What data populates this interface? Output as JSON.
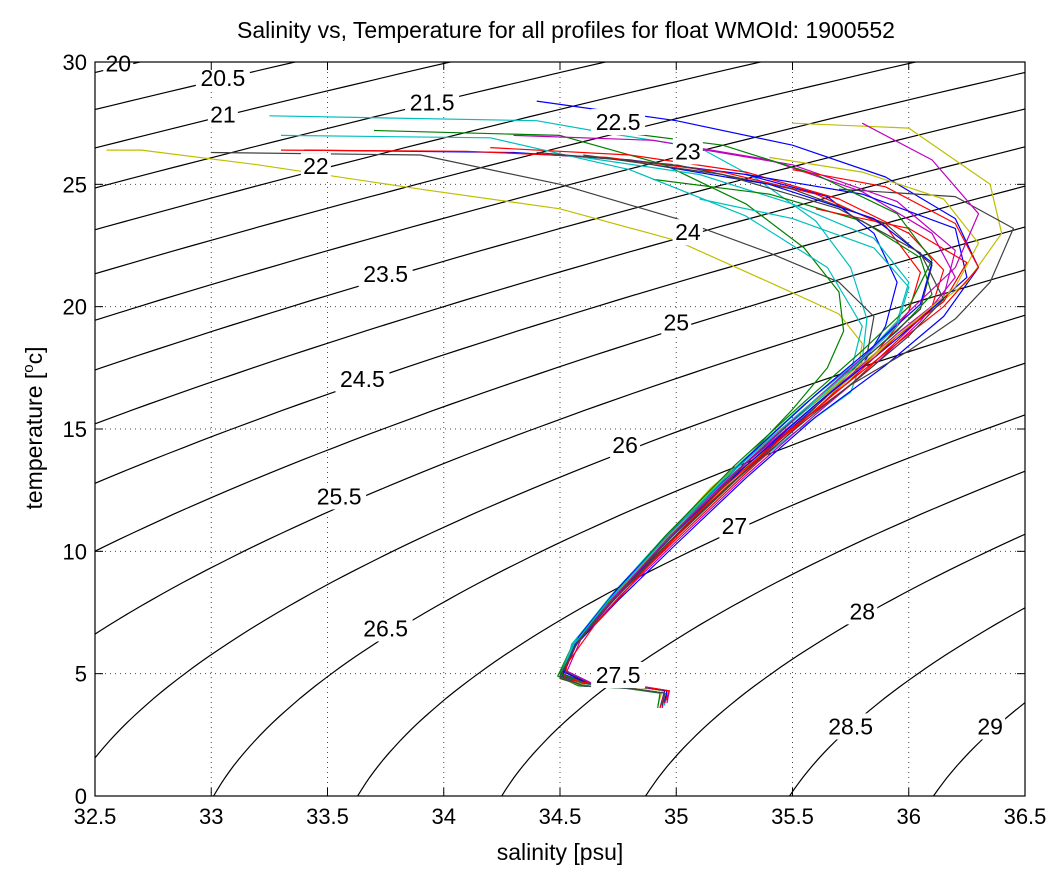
{
  "chart_data": {
    "type": "line",
    "title": "Salinity vs, Temperature for all profiles for float WMOId: 1900552",
    "xlabel": "salinity [psu]",
    "ylabel_main": "temperature [",
    "ylabel_sup": "o",
    "ylabel_end": "c]",
    "xlim": [
      32.5,
      36.5
    ],
    "ylim": [
      0,
      30
    ],
    "xticks": [
      "32.5",
      "33",
      "33.5",
      "34",
      "34.5",
      "35",
      "35.5",
      "36",
      "36.5"
    ],
    "yticks": [
      "0",
      "5",
      "10",
      "15",
      "20",
      "25",
      "30"
    ],
    "grid": true,
    "density_contours": [
      {
        "sigma": 20,
        "label": "20",
        "label_at": [
          32.6,
          29.7
        ]
      },
      {
        "sigma": 20.5,
        "label": "20.5",
        "label_at": [
          33.05,
          29.1
        ]
      },
      {
        "sigma": 21,
        "label": "21",
        "label_at": [
          33.05,
          27.6
        ]
      },
      {
        "sigma": 21.5,
        "label": "21.5",
        "label_at": [
          33.95,
          28.1
        ]
      },
      {
        "sigma": 22,
        "label": "22",
        "label_at": [
          33.45,
          25.5
        ]
      },
      {
        "sigma": 22.5,
        "label": "22.5",
        "label_at": [
          34.75,
          27.3
        ]
      },
      {
        "sigma": 23,
        "label": "23",
        "label_at": [
          35.05,
          26.1
        ]
      },
      {
        "sigma": 23.5,
        "label": "23.5",
        "label_at": [
          33.75,
          21.1
        ]
      },
      {
        "sigma": 24,
        "label": "24",
        "label_at": [
          35.05,
          22.8
        ]
      },
      {
        "sigma": 24.5,
        "label": "24.5",
        "label_at": [
          33.65,
          16.8
        ]
      },
      {
        "sigma": 25,
        "label": "25",
        "label_at": [
          35.0,
          19.1
        ]
      },
      {
        "sigma": 25.5,
        "label": "25.5",
        "label_at": [
          33.55,
          12.0
        ]
      },
      {
        "sigma": 26,
        "label": "26",
        "label_at": [
          34.78,
          14.1
        ]
      },
      {
        "sigma": 26.5,
        "label": "26.5",
        "label_at": [
          33.75,
          6.6
        ]
      },
      {
        "sigma": 27,
        "label": "27",
        "label_at": [
          35.25,
          10.8
        ]
      },
      {
        "sigma": 27.5,
        "label": "27.5",
        "label_at": [
          34.75,
          4.7
        ]
      },
      {
        "sigma": 28,
        "label": "28",
        "label_at": [
          35.8,
          7.3
        ]
      },
      {
        "sigma": 28.5,
        "label": "28.5",
        "label_at": [
          35.75,
          2.6
        ]
      },
      {
        "sigma": 29,
        "label": "29",
        "label_at": [
          36.35,
          2.6
        ]
      }
    ],
    "line_colors": [
      "#0000ff",
      "#008000",
      "#ff0000",
      "#00bfbf",
      "#bf00bf",
      "#bfbf00",
      "#404040"
    ],
    "series": [
      {
        "color": "#00bfbf",
        "x": [
          33.25,
          34.4,
          34.7,
          35.1,
          35.35,
          35.6,
          35.75,
          35.82,
          35.8,
          35.75,
          35.5,
          35.2,
          34.9,
          34.7,
          34.55,
          34.52,
          34.6,
          34.8,
          34.95,
          34.95
        ],
        "y": [
          27.8,
          27.6,
          27.1,
          26.5,
          25.2,
          23.5,
          21.6,
          19.5,
          17.8,
          16.5,
          14.8,
          12.5,
          9.9,
          7.9,
          6.2,
          4.9,
          4.5,
          4.4,
          4.2,
          3.7
        ]
      },
      {
        "color": "#0000ff",
        "x": [
          33.4,
          34.3,
          34.8,
          35.3,
          35.65,
          35.85,
          35.95,
          35.9,
          35.8,
          35.55,
          35.25,
          34.95,
          34.72,
          34.56,
          34.5,
          34.6,
          34.8,
          34.95,
          34.93
        ],
        "y": [
          26.4,
          26.3,
          26.0,
          25.4,
          24.5,
          23.0,
          21.0,
          19.2,
          17.6,
          15.5,
          13.0,
          10.2,
          8.0,
          6.3,
          5.0,
          4.6,
          4.5,
          4.3,
          3.6
        ]
      },
      {
        "color": "#ff0000",
        "x": [
          33.3,
          34.1,
          34.7,
          35.2,
          35.6,
          35.9,
          36.05,
          36.0,
          35.85,
          35.6,
          35.3,
          35.0,
          34.75,
          34.58,
          34.52,
          34.62,
          34.82,
          34.96,
          34.95
        ],
        "y": [
          26.4,
          26.35,
          26.1,
          25.5,
          24.6,
          23.3,
          21.4,
          19.8,
          18.0,
          15.8,
          13.2,
          10.5,
          8.2,
          6.4,
          5.1,
          4.6,
          4.5,
          4.3,
          3.8
        ]
      },
      {
        "color": "#bfbf00",
        "x": [
          32.55,
          32.7,
          33.2,
          33.9,
          34.5,
          35.0,
          35.4,
          35.7,
          35.8,
          35.78,
          35.55,
          35.25,
          34.97,
          34.74,
          34.57,
          34.51,
          34.6,
          34.8,
          34.94,
          34.92
        ],
        "y": [
          26.4,
          26.4,
          25.8,
          24.8,
          24.0,
          22.7,
          21.0,
          19.7,
          18.5,
          17.3,
          15.6,
          13.0,
          10.4,
          8.1,
          6.3,
          5.0,
          4.6,
          4.5,
          4.3,
          3.7
        ]
      },
      {
        "color": "#404040",
        "x": [
          33.0,
          33.9,
          34.5,
          35.0,
          35.4,
          35.7,
          35.85,
          35.82,
          35.6,
          35.3,
          35.0,
          34.76,
          34.58,
          34.52,
          34.63,
          34.83,
          34.97,
          34.96
        ],
        "y": [
          26.3,
          26.2,
          25.0,
          23.6,
          22.2,
          21.0,
          19.6,
          18.0,
          15.9,
          13.3,
          10.6,
          8.3,
          6.5,
          5.1,
          4.6,
          4.5,
          4.3,
          3.9
        ]
      },
      {
        "color": "#008000",
        "x": [
          33.7,
          34.5,
          34.95,
          35.3,
          35.55,
          35.7,
          35.72,
          35.65,
          35.5,
          35.25,
          34.95,
          34.72,
          34.56,
          34.49,
          34.58,
          34.78,
          34.93,
          34.92
        ],
        "y": [
          27.2,
          27.0,
          25.8,
          24.2,
          22.4,
          20.6,
          19.0,
          17.5,
          15.8,
          13.3,
          10.5,
          8.1,
          6.3,
          4.9,
          4.5,
          4.4,
          4.2,
          3.6
        ]
      },
      {
        "color": "#bf00bf",
        "x": [
          34.3,
          34.9,
          35.4,
          35.8,
          36.1,
          36.2,
          36.05,
          35.85,
          35.6,
          35.3,
          35.0,
          34.76,
          34.59,
          34.53,
          34.64,
          34.84,
          34.97,
          34.96
        ],
        "y": [
          27.0,
          26.8,
          26.0,
          24.7,
          23.0,
          21.2,
          19.4,
          17.6,
          15.6,
          13.1,
          10.4,
          8.2,
          6.4,
          5.1,
          4.6,
          4.5,
          4.3,
          3.8
        ]
      },
      {
        "color": "#0000ff",
        "x": [
          34.4,
          35.0,
          35.5,
          35.9,
          36.2,
          36.3,
          36.15,
          35.9,
          35.6,
          35.3,
          35.0,
          34.75,
          34.57,
          34.51,
          34.61,
          34.81,
          34.95,
          34.94
        ],
        "y": [
          28.4,
          27.6,
          26.6,
          25.3,
          23.6,
          21.6,
          19.6,
          17.6,
          15.5,
          13.0,
          10.3,
          8.0,
          6.2,
          4.9,
          4.5,
          4.4,
          4.2,
          3.6
        ]
      },
      {
        "color": "#bfbf00",
        "x": [
          35.5,
          36.0,
          36.35,
          36.4,
          36.25,
          36.0,
          35.75,
          35.45,
          35.15,
          34.9,
          34.68,
          34.55,
          34.5,
          34.6,
          34.8,
          34.95,
          34.94
        ],
        "y": [
          27.5,
          27.3,
          25.0,
          23.0,
          21.0,
          19.2,
          17.2,
          15.0,
          12.6,
          10.0,
          7.6,
          5.9,
          4.8,
          4.5,
          4.4,
          4.2,
          3.7
        ]
      },
      {
        "color": "#404040",
        "x": [
          35.7,
          36.2,
          36.45,
          36.35,
          36.2,
          36.0,
          35.75,
          35.45,
          35.15,
          34.9,
          34.68,
          34.55,
          34.5,
          34.61,
          34.81,
          34.95,
          34.94
        ],
        "y": [
          24.8,
          24.5,
          23.2,
          21.0,
          19.5,
          18.2,
          16.8,
          14.7,
          12.3,
          9.8,
          7.6,
          5.9,
          4.8,
          4.5,
          4.4,
          4.2,
          3.7
        ]
      },
      {
        "color": "#ff0000",
        "x": [
          34.2,
          34.8,
          35.3,
          35.7,
          36.0,
          36.15,
          36.1,
          35.95,
          35.75,
          35.45,
          35.15,
          34.9,
          34.69,
          34.55,
          34.5,
          34.6,
          34.8,
          34.95,
          34.93
        ],
        "y": [
          26.5,
          26.2,
          25.5,
          24.4,
          23.0,
          21.5,
          20.0,
          18.6,
          16.8,
          14.7,
          12.3,
          9.8,
          7.7,
          6.0,
          4.9,
          4.5,
          4.4,
          4.2,
          3.6
        ]
      },
      {
        "color": "#00bfbf",
        "x": [
          34.6,
          35.1,
          35.5,
          35.85,
          36.0,
          35.95,
          35.8,
          35.55,
          35.25,
          34.95,
          34.72,
          34.56,
          34.5,
          34.6,
          34.8,
          34.95,
          34.94
        ],
        "y": [
          26.1,
          25.4,
          24.2,
          22.8,
          21.0,
          19.4,
          17.9,
          16.0,
          13.4,
          10.6,
          8.2,
          6.3,
          5.0,
          4.6,
          4.4,
          4.2,
          3.7
        ]
      },
      {
        "color": "#008000",
        "x": [
          34.9,
          35.4,
          35.8,
          36.05,
          36.1,
          35.95,
          35.75,
          35.5,
          35.2,
          34.93,
          34.71,
          34.56,
          34.5,
          34.6,
          34.8,
          34.95,
          34.94
        ],
        "y": [
          25.2,
          24.6,
          23.5,
          22.0,
          20.5,
          19.0,
          17.4,
          15.4,
          12.9,
          10.3,
          8.0,
          6.2,
          4.9,
          4.5,
          4.4,
          4.2,
          3.7
        ]
      },
      {
        "color": "#bf00bf",
        "x": [
          35.0,
          35.5,
          35.95,
          36.2,
          36.15,
          35.95,
          35.75,
          35.5,
          35.2,
          34.93,
          34.71,
          34.56,
          34.5,
          34.61,
          34.81,
          34.95,
          34.94
        ],
        "y": [
          26.6,
          25.8,
          24.3,
          22.3,
          20.4,
          18.9,
          17.2,
          15.2,
          12.8,
          10.2,
          7.9,
          6.1,
          4.9,
          4.5,
          4.4,
          4.2,
          3.7
        ]
      },
      {
        "color": "#0000ff",
        "x": [
          35.3,
          35.8,
          36.2,
          36.25,
          36.05,
          35.85,
          35.6,
          35.3,
          35.0,
          34.76,
          34.58,
          34.51,
          34.62,
          34.82,
          34.96,
          34.95
        ],
        "y": [
          25.4,
          24.6,
          23.2,
          21.2,
          19.5,
          17.9,
          16.0,
          13.5,
          10.8,
          8.4,
          6.4,
          5.0,
          4.6,
          4.5,
          4.3,
          3.8
        ]
      },
      {
        "color": "#ff0000",
        "x": [
          35.6,
          36.0,
          36.25,
          36.15,
          35.95,
          35.75,
          35.5,
          35.2,
          34.93,
          34.71,
          34.56,
          34.5,
          34.61,
          34.81,
          34.95,
          34.94
        ],
        "y": [
          24.0,
          23.2,
          21.8,
          20.2,
          18.8,
          17.0,
          15.0,
          12.6,
          10.0,
          7.8,
          6.1,
          4.9,
          4.5,
          4.4,
          4.2,
          3.7
        ]
      },
      {
        "color": "#00bfbf",
        "x": [
          33.3,
          34.2,
          34.8,
          35.3,
          35.65,
          35.8,
          35.75,
          35.5,
          35.2,
          34.93,
          34.71,
          34.56,
          34.5,
          34.6,
          34.8,
          34.95,
          34.94
        ],
        "y": [
          27.0,
          26.9,
          25.6,
          23.7,
          21.6,
          19.2,
          17.3,
          15.3,
          12.8,
          10.2,
          7.9,
          6.1,
          4.9,
          4.5,
          4.4,
          4.2,
          3.7
        ]
      },
      {
        "color": "#bfbf00",
        "x": [
          35.4,
          35.8,
          36.15,
          36.3,
          36.2,
          36.0,
          35.75,
          35.45,
          35.15,
          34.9,
          34.69,
          34.55,
          34.5,
          34.61,
          34.81,
          34.95,
          34.94
        ],
        "y": [
          26.1,
          25.5,
          24.4,
          22.6,
          20.8,
          19.2,
          17.3,
          15.0,
          12.5,
          9.9,
          7.7,
          6.0,
          4.9,
          4.5,
          4.4,
          4.2,
          3.7
        ]
      },
      {
        "color": "#404040",
        "x": [
          34.4,
          35.0,
          35.5,
          35.9,
          36.1,
          36.05,
          35.85,
          35.6,
          35.3,
          35.0,
          34.75,
          34.58,
          34.51,
          34.62,
          34.82,
          34.96,
          34.95
        ],
        "y": [
          26.3,
          25.8,
          24.8,
          23.4,
          21.7,
          19.9,
          18.2,
          16.2,
          13.6,
          10.8,
          8.3,
          6.4,
          5.0,
          4.6,
          4.5,
          4.3,
          3.8
        ]
      },
      {
        "color": "#008000",
        "x": [
          34.7,
          35.2,
          35.6,
          35.95,
          36.1,
          36.0,
          35.8,
          35.55,
          35.25,
          34.96,
          34.73,
          34.57,
          34.5,
          34.6,
          34.8,
          34.95,
          34.94
        ],
        "y": [
          27.2,
          26.6,
          25.4,
          23.8,
          21.9,
          20.0,
          18.2,
          16.1,
          13.5,
          10.7,
          8.2,
          6.3,
          5.0,
          4.6,
          4.4,
          4.2,
          3.7
        ]
      },
      {
        "color": "#bf00bf",
        "x": [
          35.8,
          36.1,
          36.3,
          36.2,
          36.0,
          35.8,
          35.55,
          35.25,
          34.96,
          34.73,
          34.57,
          34.5,
          34.6,
          34.8,
          34.95,
          34.94
        ],
        "y": [
          27.5,
          26.0,
          23.8,
          21.6,
          19.8,
          17.9,
          15.8,
          13.2,
          10.5,
          8.1,
          6.2,
          4.9,
          4.5,
          4.4,
          4.2,
          3.6
        ]
      },
      {
        "color": "#0000ff",
        "x": [
          34.9,
          35.4,
          35.85,
          36.1,
          36.05,
          35.85,
          35.6,
          35.3,
          35.0,
          34.75,
          34.58,
          34.51,
          34.62,
          34.82,
          34.96,
          34.95
        ],
        "y": [
          25.8,
          25.0,
          23.6,
          21.8,
          20.1,
          18.4,
          16.4,
          13.8,
          11.0,
          8.5,
          6.5,
          5.1,
          4.6,
          4.5,
          4.3,
          3.8
        ]
      },
      {
        "color": "#ff0000",
        "x": [
          35.5,
          35.9,
          36.2,
          36.3,
          36.15,
          35.95,
          35.7,
          35.4,
          35.1,
          34.85,
          34.65,
          34.53,
          34.52,
          34.63,
          34.83,
          34.97,
          34.95
        ],
        "y": [
          25.6,
          24.9,
          23.4,
          21.6,
          20.0,
          18.5,
          16.6,
          14.2,
          11.6,
          9.1,
          7.0,
          5.4,
          4.8,
          4.6,
          4.5,
          4.3,
          3.8
        ]
      },
      {
        "color": "#00bfbf",
        "x": [
          35.1,
          35.5,
          35.85,
          36.0,
          35.95,
          35.75,
          35.5,
          35.2,
          34.93,
          34.71,
          34.56,
          34.5,
          34.6,
          34.8,
          34.95,
          34.94
        ],
        "y": [
          24.4,
          23.6,
          22.4,
          20.8,
          19.2,
          17.4,
          15.4,
          12.9,
          10.3,
          8.0,
          6.2,
          4.9,
          4.5,
          4.4,
          4.2,
          3.7
        ]
      },
      {
        "color": "#404040",
        "x": [
          34.6,
          35.2,
          35.7,
          36.05,
          36.15,
          36.0,
          35.8,
          35.55,
          35.25,
          34.96,
          34.73,
          34.57,
          34.5,
          34.6,
          34.8,
          34.95,
          34.94
        ],
        "y": [
          26.2,
          25.4,
          24.0,
          22.2,
          20.3,
          18.8,
          17.2,
          15.3,
          12.9,
          10.3,
          8.0,
          6.2,
          4.9,
          4.5,
          4.4,
          4.2,
          3.7
        ]
      }
    ]
  }
}
